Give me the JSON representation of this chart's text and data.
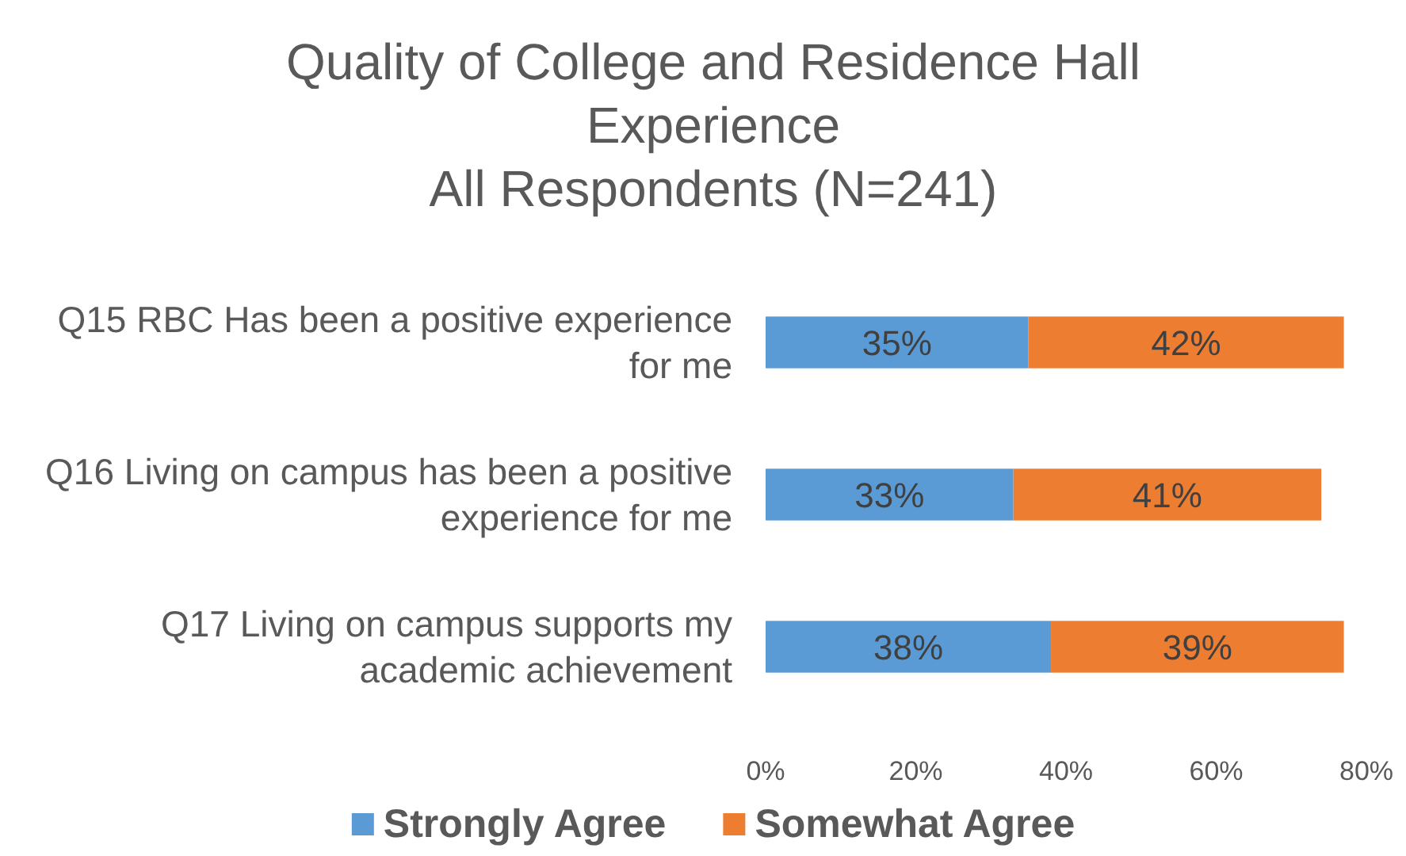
{
  "chart_data": {
    "type": "bar",
    "orientation": "horizontal",
    "stacked": true,
    "title": "Quality of College and Residence Hall Experience\nAll Respondents (N=241)",
    "categories": [
      "Q15 RBC Has been a positive experience for me",
      "Q16 Living on campus has been a positive experience for me",
      "Q17 Living on campus supports my academic achievement"
    ],
    "series": [
      {
        "name": "Strongly Agree",
        "color": "#5b9bd5",
        "values": [
          35,
          33,
          38
        ],
        "value_labels": [
          "35%",
          "33%",
          "38%"
        ]
      },
      {
        "name": "Somewhat Agree",
        "color": "#ed7d31",
        "values": [
          42,
          41,
          39
        ],
        "value_labels": [
          "42%",
          "41%",
          "39%"
        ]
      }
    ],
    "xlim": [
      0,
      80
    ],
    "xticks": [
      {
        "value": 0,
        "label": "0%"
      },
      {
        "value": 20,
        "label": "20%"
      },
      {
        "value": 40,
        "label": "40%"
      },
      {
        "value": 60,
        "label": "60%"
      },
      {
        "value": 80,
        "label": "80%"
      }
    ],
    "legend": "bottom"
  }
}
